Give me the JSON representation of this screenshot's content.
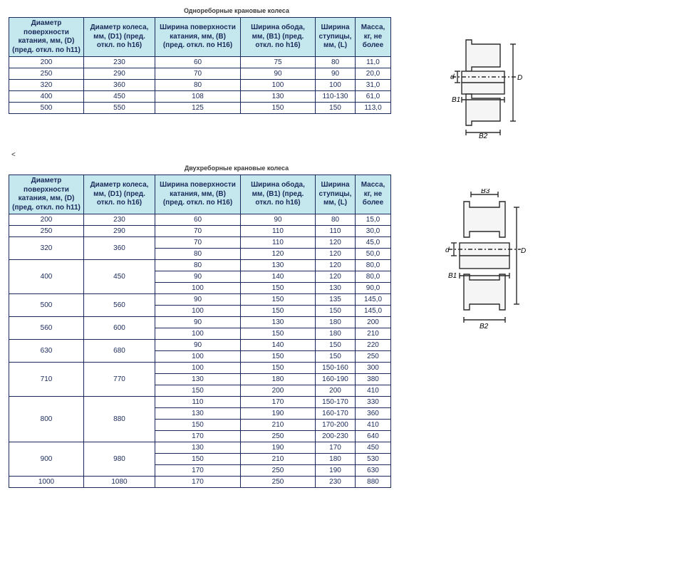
{
  "colors": {
    "header_bg": "#c5e8ef",
    "border": "#1a2a5a",
    "text": "#1a2a5a",
    "diagram_stroke": "#2a2a2a",
    "diagram_fill": "#f0f0f0"
  },
  "table1": {
    "title": "Однореборные крановые колеса",
    "columns": [
      "Диаметр поверхности катания, мм, (D) (пред. откл. по h11)",
      "Диаметр колеса, мм, (D1) (пред. откл. по h16)",
      "Ширина поверхности катания, мм, (B) (пред. откл. по H16)",
      "Ширина обода, мм, (B1) (пред. откл. по h16)",
      "Ширина ступицы, мм, (L)",
      "Масса, кг, не более"
    ],
    "rows": [
      [
        "200",
        "230",
        "60",
        "75",
        "80",
        "11,0"
      ],
      [
        "250",
        "290",
        "70",
        "90",
        "90",
        "20,0"
      ],
      [
        "320",
        "360",
        "80",
        "100",
        "100",
        "31,0"
      ],
      [
        "400",
        "450",
        "108",
        "130",
        "110-130",
        "61,0"
      ],
      [
        "500",
        "550",
        "125",
        "150",
        "150",
        "113,0"
      ]
    ]
  },
  "table2": {
    "title": "Двухреборные крановые колеса",
    "columns": [
      "Диаметр поверхности катания, мм, (D) (пред. откл. по h11)",
      "Диаметр колеса, мм, (D1) (пред. откл. по h16)",
      "Ширина поверхности катания, мм, (B) (пред. откл. по H16)",
      "Ширина обода, мм, (B1) (пред. откл. по h16)",
      "Ширина ступицы, мм, (L)",
      "Масса, кг, не более"
    ],
    "groups": [
      {
        "d": "200",
        "d1": "230",
        "rows": [
          [
            "60",
            "90",
            "80",
            "15,0"
          ]
        ]
      },
      {
        "d": "250",
        "d1": "290",
        "rows": [
          [
            "70",
            "110",
            "110",
            "30,0"
          ]
        ]
      },
      {
        "d": "320",
        "d1": "360",
        "rows": [
          [
            "70",
            "110",
            "120",
            "45,0"
          ],
          [
            "80",
            "120",
            "120",
            "50,0"
          ]
        ]
      },
      {
        "d": "400",
        "d1": "450",
        "rows": [
          [
            "80",
            "130",
            "120",
            "80,0"
          ],
          [
            "90",
            "140",
            "120",
            "80,0"
          ],
          [
            "100",
            "150",
            "130",
            "90,0"
          ]
        ]
      },
      {
        "d": "500",
        "d1": "560",
        "rows": [
          [
            "90",
            "150",
            "135",
            "145,0"
          ],
          [
            "100",
            "150",
            "150",
            "145,0"
          ]
        ]
      },
      {
        "d": "560",
        "d1": "600",
        "rows": [
          [
            "90",
            "130",
            "180",
            "200"
          ],
          [
            "100",
            "150",
            "180",
            "210"
          ]
        ]
      },
      {
        "d": "630",
        "d1": "680",
        "rows": [
          [
            "90",
            "140",
            "150",
            "220"
          ],
          [
            "100",
            "150",
            "150",
            "250"
          ]
        ]
      },
      {
        "d": "710",
        "d1": "770",
        "rows": [
          [
            "100",
            "150",
            "150-160",
            "300"
          ],
          [
            "130",
            "180",
            "160-190",
            "380"
          ],
          [
            "150",
            "200",
            "200",
            "410"
          ]
        ]
      },
      {
        "d": "800",
        "d1": "880",
        "rows": [
          [
            "110",
            "170",
            "150-170",
            "330"
          ],
          [
            "130",
            "190",
            "160-170",
            "360"
          ],
          [
            "150",
            "210",
            "170-200",
            "410"
          ],
          [
            "170",
            "250",
            "200-230",
            "640"
          ]
        ]
      },
      {
        "d": "900",
        "d1": "980",
        "rows": [
          [
            "130",
            "190",
            "170",
            "450"
          ],
          [
            "150",
            "210",
            "180",
            "530"
          ],
          [
            "170",
            "250",
            "190",
            "630"
          ]
        ]
      },
      {
        "d": "1000",
        "d1": "1080",
        "rows": [
          [
            "170",
            "250",
            "230",
            "880"
          ]
        ]
      }
    ]
  },
  "diagram_labels": {
    "d": "d",
    "D": "D",
    "B": "B",
    "B1": "B1",
    "B2": "B2",
    "B3": "B3"
  }
}
